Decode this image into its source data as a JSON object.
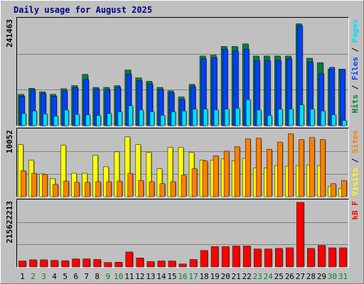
{
  "chart_data": [
    {
      "type": "bar",
      "title": "Daily usage for August 2025",
      "categories": [
        "1",
        "2",
        "3",
        "4",
        "5",
        "6",
        "7",
        "8",
        "9",
        "10",
        "11",
        "12",
        "13",
        "14",
        "15",
        "16",
        "17",
        "18",
        "19",
        "20",
        "21",
        "22",
        "23",
        "24",
        "25",
        "26",
        "27",
        "28",
        "29",
        "30",
        "31"
      ],
      "weekend_days": [
        "2",
        "3",
        "9",
        "10",
        "16",
        "17",
        "23",
        "24",
        "30",
        "31"
      ],
      "ymax_label": "241463",
      "ylim": [
        0,
        241463
      ],
      "legend": [
        "Pages",
        "Files",
        "Hits"
      ],
      "series": [
        {
          "name": "Hits",
          "color": "#008040",
          "values": [
            72000,
            86000,
            78000,
            72000,
            85000,
            92000,
            118000,
            88000,
            88000,
            92000,
            128000,
            110000,
            102000,
            88000,
            80000,
            66000,
            95000,
            160000,
            162000,
            182000,
            182000,
            188000,
            160000,
            160000,
            160000,
            160000,
            234000,
            155000,
            145000,
            130000,
            130000
          ]
        },
        {
          "name": "Files",
          "color": "#0040ff",
          "values": [
            68000,
            82000,
            74000,
            68000,
            80000,
            88000,
            106000,
            84000,
            82000,
            88000,
            118000,
            104000,
            96000,
            83000,
            76000,
            60000,
            90000,
            154000,
            156000,
            176000,
            172000,
            176000,
            150000,
            150000,
            150000,
            154000,
            230000,
            146000,
            120000,
            134000,
            130000
          ]
        },
        {
          "name": "Pages",
          "color": "#00e0ff",
          "values": [
            28000,
            34000,
            27000,
            22000,
            36000,
            26000,
            25000,
            24000,
            28000,
            32000,
            46000,
            36000,
            32000,
            24000,
            32000,
            34000,
            38000,
            38000,
            36000,
            38000,
            40000,
            60000,
            36000,
            24000,
            38000,
            38000,
            48000,
            38000,
            34000,
            25000,
            12000
          ]
        }
      ]
    },
    {
      "type": "bar",
      "ymax_label": "10052",
      "ylim": [
        0,
        10052
      ],
      "legend": [
        "Sites",
        "Visits"
      ],
      "series": [
        {
          "name": "Visits",
          "color": "#ffff00",
          "values": [
            8000,
            5600,
            3500,
            2800,
            7900,
            3600,
            3600,
            6400,
            4600,
            6900,
            9200,
            8000,
            6800,
            4300,
            7600,
            7600,
            6800,
            5600,
            5600,
            5800,
            5500,
            5900,
            4400,
            4400,
            4800,
            4700,
            4800,
            4900,
            4800,
            1600,
            1300
          ]
        },
        {
          "name": "Sites",
          "color": "#ff8000",
          "values": [
            4000,
            3600,
            3400,
            1900,
            2400,
            2200,
            2200,
            2300,
            2300,
            2400,
            3600,
            2500,
            2300,
            2000,
            2300,
            3300,
            4300,
            5500,
            6300,
            7000,
            7700,
            8900,
            9000,
            7300,
            8400,
            9700,
            8800,
            9100,
            8800,
            2000,
            2500
          ]
        }
      ]
    },
    {
      "type": "bar",
      "ymax_label": "215622213",
      "ylim": [
        0,
        215622213
      ],
      "legend": [
        "kB F"
      ],
      "series": [
        {
          "name": "kB F",
          "color": "#ff0000",
          "values": [
            20000000,
            24000000,
            24000000,
            22000000,
            21000000,
            27000000,
            27000000,
            25000000,
            15000000,
            16000000,
            50000000,
            30000000,
            18000000,
            20000000,
            20000000,
            10000000,
            25000000,
            55000000,
            68000000,
            68000000,
            70000000,
            70000000,
            60000000,
            60000000,
            62000000,
            64000000,
            215622213,
            62000000,
            72000000,
            64000000,
            64000000
          ]
        }
      ]
    }
  ]
}
